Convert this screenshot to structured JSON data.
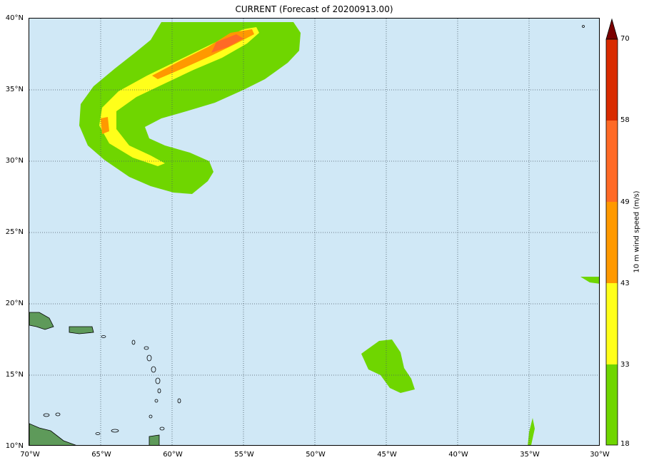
{
  "title": "CURRENT (Forecast of 20200913.00)",
  "lat_labels": [
    "40°N",
    "35°N",
    "30°N",
    "25°N",
    "20°N",
    "15°N",
    "10°N"
  ],
  "lon_labels": [
    "70°W",
    "65°W",
    "60°W",
    "55°W",
    "50°W",
    "45°W",
    "40°W",
    "35°W",
    "30°W"
  ],
  "colorbar": {
    "label": "10 m wind speed (m/s)",
    "ticks": [
      "70",
      "58",
      "49",
      "43",
      "33",
      "18"
    ],
    "colors": {
      "18_33": "#6fd600",
      "33_43": "#ffff1a",
      "43_49": "#ff9900",
      "49_58": "#ff6a26",
      "58_70": "#d92b00",
      "above": "#7a0000"
    }
  },
  "colors": {
    "ocean": "#d0e8f6",
    "land": "#5e9a5a"
  }
}
